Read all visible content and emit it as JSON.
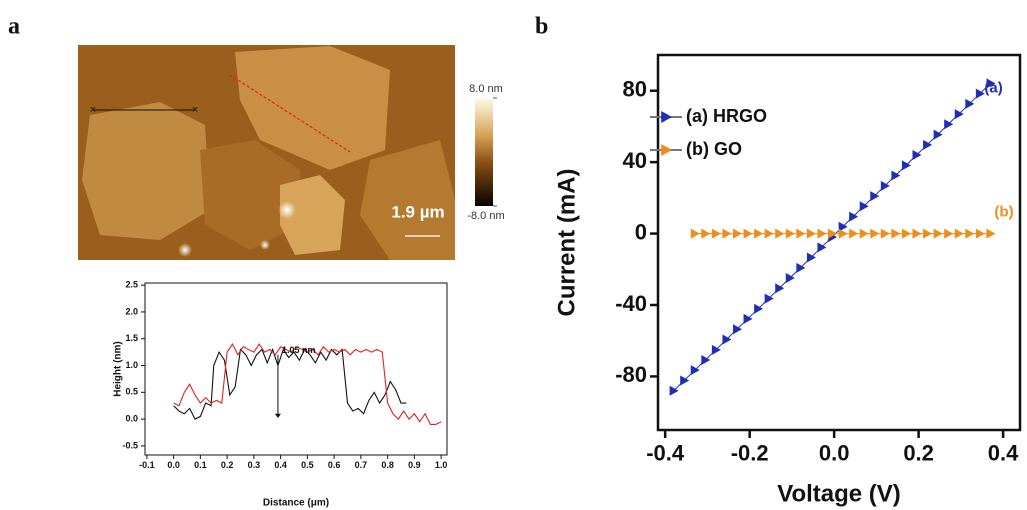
{
  "chart_data": [
    {
      "type": "image",
      "panel": "a",
      "colorbar": {
        "lim": [
          -8,
          8
        ],
        "ticks": [
          {
            "value": 8,
            "label": "8.0 nm"
          },
          {
            "value": -8,
            "label": "-8.0 nm"
          }
        ]
      },
      "scale_bar": "1.9 µm"
    },
    {
      "type": "line",
      "xlabel": "Distance (μm)",
      "ylabel": "Height (nm)",
      "xlim": [
        -0.107,
        1.022
      ],
      "ylim": [
        -0.67,
        2.54
      ],
      "xticks": [
        -0.1,
        {
          "value": 0,
          "label": "0.0"
        },
        0.1,
        0.2,
        0.3,
        0.4,
        0.5,
        0.6,
        0.7,
        0.8,
        0.9,
        {
          "value": 1,
          "label": "1.0"
        }
      ],
      "yticks": [
        -0.5,
        {
          "value": 0,
          "label": "0.0"
        },
        0.5,
        {
          "value": 1,
          "label": "1.0"
        },
        1.5,
        {
          "value": 2,
          "label": "2.0"
        },
        2.5
      ],
      "annotations": [
        "1.05 nm"
      ],
      "series": [
        {
          "color": "#111111",
          "x": [
            0,
            0.02,
            0.04,
            0.06,
            0.08,
            0.1,
            0.12,
            0.14,
            0.15,
            0.17,
            0.19,
            0.21,
            0.23,
            0.25,
            0.27,
            0.29,
            0.31,
            0.33,
            0.35,
            0.37,
            0.39,
            0.41,
            0.43,
            0.45,
            0.47,
            0.49,
            0.51,
            0.53,
            0.55,
            0.57,
            0.59,
            0.61,
            0.63,
            0.65,
            0.67,
            0.69,
            0.71,
            0.73,
            0.75,
            0.77,
            0.79,
            0.81,
            0.83,
            0.85,
            0.87
          ],
          "values": [
            0.25,
            0.15,
            0.1,
            0.2,
            0.0,
            0.05,
            0.3,
            0.25,
            1.0,
            1.25,
            1.1,
            0.45,
            0.6,
            1.3,
            1.2,
            1.0,
            1.2,
            1.3,
            1.05,
            1.3,
            1.0,
            1.3,
            1.15,
            1.25,
            1.1,
            1.3,
            1.2,
            1.05,
            1.25,
            1.1,
            1.3,
            1.2,
            1.3,
            0.3,
            0.15,
            0.2,
            0.1,
            0.35,
            0.5,
            0.3,
            0.45,
            0.7,
            0.55,
            0.3,
            0.3
          ]
        },
        {
          "color": "#e0231e",
          "x": [
            0,
            0.02,
            0.04,
            0.06,
            0.08,
            0.1,
            0.12,
            0.14,
            0.16,
            0.18,
            0.2,
            0.22,
            0.24,
            0.26,
            0.28,
            0.3,
            0.32,
            0.34,
            0.36,
            0.38,
            0.4,
            0.42,
            0.44,
            0.46,
            0.48,
            0.5,
            0.52,
            0.54,
            0.56,
            0.58,
            0.6,
            0.62,
            0.64,
            0.66,
            0.68,
            0.7,
            0.72,
            0.74,
            0.76,
            0.78,
            0.8,
            0.82,
            0.84,
            0.86,
            0.88,
            0.9,
            0.92,
            0.94,
            0.96,
            0.98,
            1.0
          ],
          "values": [
            0.3,
            0.25,
            0.5,
            0.65,
            0.45,
            0.3,
            0.4,
            0.3,
            0.35,
            0.3,
            1.25,
            1.4,
            1.2,
            1.35,
            1.3,
            1.25,
            1.4,
            1.25,
            1.3,
            1.2,
            1.35,
            1.3,
            1.25,
            1.35,
            1.3,
            1.25,
            1.3,
            1.2,
            1.35,
            1.25,
            1.3,
            1.25,
            1.3,
            1.2,
            1.3,
            1.25,
            1.3,
            1.25,
            1.3,
            1.25,
            0.3,
            0.1,
            0.0,
            0.15,
            0.0,
            0.1,
            -0.05,
            0.1,
            -0.1,
            -0.1,
            -0.05
          ]
        }
      ]
    },
    {
      "type": "line",
      "panel": "b",
      "marker": "triangle",
      "xlabel": "Voltage (V)",
      "ylabel": "Current (mA)",
      "xlim": [
        -0.417,
        0.44
      ],
      "ylim": [
        -110,
        100
      ],
      "xticks": [
        -0.4,
        -0.2,
        {
          "value": 0,
          "label": "0.0"
        },
        0.2,
        0.4
      ],
      "yticks": [
        -80,
        -40,
        0,
        40,
        80
      ],
      "legend": "upper left",
      "annotations": [
        "(a)",
        "(b)"
      ],
      "series": [
        {
          "name": "(a) HRGO",
          "color": "#1f2fb5",
          "x": [
            -0.38,
            -0.355,
            -0.33,
            -0.305,
            -0.28,
            -0.255,
            -0.23,
            -0.205,
            -0.18,
            -0.155,
            -0.13,
            -0.105,
            -0.08,
            -0.055,
            -0.03,
            -0.005,
            0.02,
            0.045,
            0.07,
            0.095,
            0.12,
            0.145,
            0.17,
            0.195,
            0.22,
            0.245,
            0.27,
            0.295,
            0.32,
            0.345,
            0.37
          ],
          "values": [
            -88.0,
            -82.3,
            -76.5,
            -70.8,
            -65.1,
            -59.3,
            -53.6,
            -47.8,
            -42.1,
            -36.4,
            -30.6,
            -24.9,
            -19.2,
            -13.4,
            -7.7,
            -2.0,
            3.8,
            9.5,
            15.3,
            21.0,
            26.7,
            32.5,
            38.2,
            44.0,
            49.7,
            55.4,
            61.2,
            66.9,
            72.6,
            78.4,
            84.1
          ]
        },
        {
          "name": "(b) GO",
          "color": "#f08c1a",
          "x": [
            -0.33,
            -0.305,
            -0.28,
            -0.255,
            -0.23,
            -0.205,
            -0.18,
            -0.155,
            -0.13,
            -0.105,
            -0.08,
            -0.055,
            -0.03,
            -0.005,
            0.02,
            0.045,
            0.07,
            0.095,
            0.12,
            0.145,
            0.17,
            0.195,
            0.22,
            0.245,
            0.27,
            0.295,
            0.32,
            0.345,
            0.37
          ],
          "values": [
            0,
            0,
            0,
            0,
            0,
            0,
            0,
            0,
            0,
            0,
            0,
            0,
            0,
            0,
            0,
            0,
            0,
            0,
            0,
            0,
            0,
            0,
            0,
            0,
            0,
            0,
            0,
            0,
            0
          ]
        }
      ]
    }
  ]
}
